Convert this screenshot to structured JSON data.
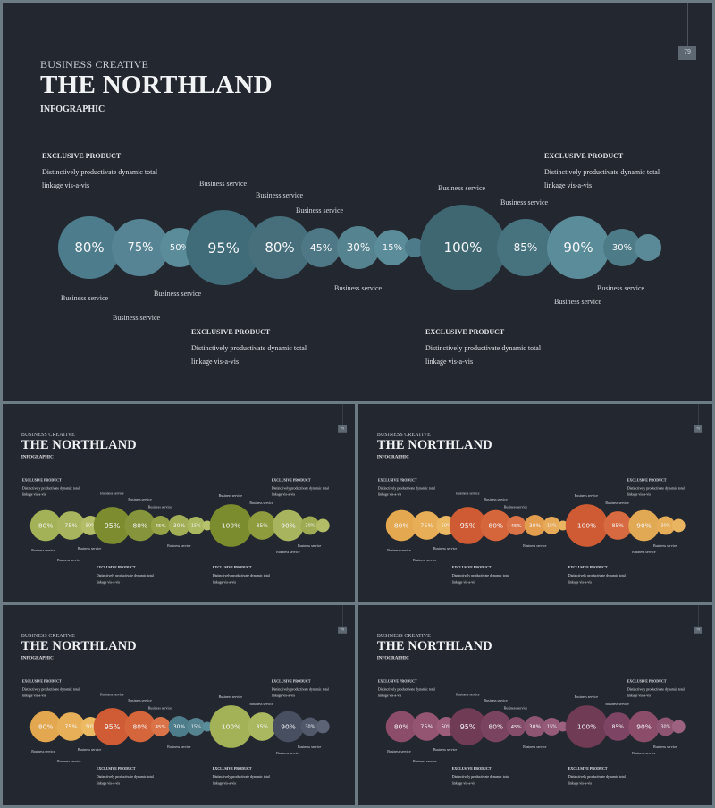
{
  "subtitle": "BUSINESS CREATIVE",
  "title": "THE NORTHLAND",
  "tagline": "INFOGRAPHIC",
  "page_number": "79",
  "bubble_labels": [
    "80%",
    "75%",
    "50%",
    "95%",
    "80%",
    "45%",
    "30%",
    "15%",
    "",
    "100%",
    "85%",
    "90%",
    "30%",
    ""
  ],
  "service_label": "Business service",
  "exclusive": {
    "heading": "EXCLUSIVE PRODUCT",
    "desc": "Distinctively productivate dynamic total linkage vis-a-vis"
  },
  "palettes": {
    "slide_1_blue": [
      "#4d7c8c",
      "#568494",
      "#5b8c9a",
      "#3f6c78",
      "#466f7b",
      "#4e7885",
      "#55838f",
      "#5b8c99",
      "#4e7b89",
      "#3f6772",
      "#47737f",
      "#5b8c9a",
      "#4e7b88",
      "#5a8a97"
    ],
    "slide_2_green": [
      "#a3b256",
      "#a9b55e",
      "#b3bd67",
      "#7c8c2e",
      "#86953c",
      "#95a346",
      "#a1ae56",
      "#aab85f",
      "#b6c26c",
      "#7b8c2e",
      "#8e9c3e",
      "#a8b45e",
      "#9eab52",
      "#b3bd67"
    ],
    "slide_3_orange": [
      "#e4a850",
      "#e7ae57",
      "#ebb863",
      "#cf5b34",
      "#d5663c",
      "#da7448",
      "#e29d4f",
      "#e6aa58",
      "#e9b561",
      "#cf5b34",
      "#d76a40",
      "#e2a954",
      "#e5ad57",
      "#e9b561"
    ],
    "slide_4_mixed": [
      "#e2a74f",
      "#e7b058",
      "#ebba62",
      "#cf5c35",
      "#d5663c",
      "#da7448",
      "#4d7d8a",
      "#55838f",
      "#5b8c99",
      "#a3b256",
      "#aab85f",
      "#474f60",
      "#505869",
      "#5b6374"
    ],
    "slide_5_plum": [
      "#8c4d6a",
      "#945573",
      "#9c5d7b",
      "#703b55",
      "#7a4460",
      "#854d69",
      "#8d5572",
      "#955b79",
      "#9c6280",
      "#703b55",
      "#7d4563",
      "#8c4d6b",
      "#8d5572",
      "#9c6280"
    ]
  }
}
